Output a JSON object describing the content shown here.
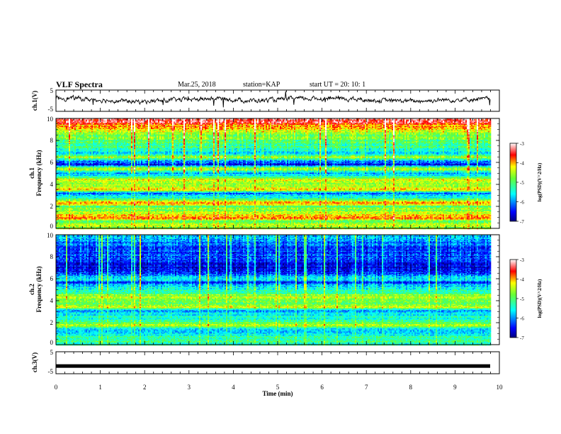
{
  "header": {
    "title": "VLF Spectra",
    "date": "Mar.25, 2018",
    "station": "station=KAP",
    "start": "start  UT  =   20: 10: 1"
  },
  "chart_data": [
    {
      "type": "line",
      "ylabel": "ch.1(V)",
      "ylim": [
        -5,
        5
      ],
      "yticks": [
        "5",
        "-5"
      ],
      "xlim": [
        0,
        10
      ],
      "series": [
        {
          "values_summary": [
            1.5,
            0.5,
            -0.5,
            0.3,
            1.0,
            0.0,
            0.8,
            1.2,
            0.2,
            -0.2,
            0.5,
            0.8
          ]
        }
      ]
    },
    {
      "type": "heatmap",
      "channel": "ch.1",
      "ylabel": "Frequency (kHz)",
      "ylim": [
        0,
        10
      ],
      "yticks": [
        "0",
        "2",
        "4",
        "6",
        "8",
        "10"
      ],
      "xlim": [
        0,
        9.8
      ],
      "colorbar": {
        "label": "log(PSD)(V^2/Hz)",
        "range": [
          -7,
          -3
        ],
        "ticks": [
          "-3",
          "-4",
          "-5",
          "-6",
          "-7"
        ]
      },
      "bands": [
        {
          "f": 10.0,
          "v": -3.2
        },
        {
          "f": 9.3,
          "v": -4.0
        },
        {
          "f": 8.5,
          "v": -4.7
        },
        {
          "f": 7.5,
          "v": -5.2
        },
        {
          "f": 6.8,
          "v": -5.6
        },
        {
          "f": 6.5,
          "v": -4.6
        },
        {
          "f": 6.0,
          "v": -6.3
        },
        {
          "f": 5.8,
          "v": -6.6
        },
        {
          "f": 5.4,
          "v": -4.3
        },
        {
          "f": 5.0,
          "v": -6.0
        },
        {
          "f": 4.6,
          "v": -4.9
        },
        {
          "f": 4.3,
          "v": -4.2
        },
        {
          "f": 4.0,
          "v": -4.6
        },
        {
          "f": 3.5,
          "v": -4.0
        },
        {
          "f": 3.2,
          "v": -6.3
        },
        {
          "f": 3.0,
          "v": -5.8
        },
        {
          "f": 2.6,
          "v": -4.9
        },
        {
          "f": 2.3,
          "v": -3.8
        },
        {
          "f": 2.0,
          "v": -5.0
        },
        {
          "f": 1.6,
          "v": -4.6
        },
        {
          "f": 1.2,
          "v": -4.3
        },
        {
          "f": 1.0,
          "v": -3.8
        },
        {
          "f": 0.6,
          "v": -5.0
        },
        {
          "f": 0.3,
          "v": -4.5
        },
        {
          "f": 0.0,
          "v": -4.6
        }
      ]
    },
    {
      "type": "heatmap",
      "channel": "ch.2",
      "ylabel": "Frequency (kHz)",
      "ylim": [
        0,
        10
      ],
      "yticks": [
        "0",
        "2",
        "4",
        "6",
        "8",
        "10"
      ],
      "xlim": [
        0,
        9.8
      ],
      "colorbar": {
        "label": "log(PSD)(V^2/Hz)",
        "range": [
          -7,
          -3
        ],
        "ticks": [
          "-3",
          "-4",
          "-5",
          "-6",
          "-7"
        ]
      },
      "bands": [
        {
          "f": 10.0,
          "v": -5.8
        },
        {
          "f": 9.0,
          "v": -6.2
        },
        {
          "f": 8.0,
          "v": -6.4
        },
        {
          "f": 7.0,
          "v": -6.6
        },
        {
          "f": 6.5,
          "v": -6.3
        },
        {
          "f": 6.0,
          "v": -5.6
        },
        {
          "f": 5.6,
          "v": -6.4
        },
        {
          "f": 5.2,
          "v": -5.5
        },
        {
          "f": 4.7,
          "v": -5.0
        },
        {
          "f": 4.2,
          "v": -4.5
        },
        {
          "f": 3.8,
          "v": -5.0
        },
        {
          "f": 3.4,
          "v": -4.3
        },
        {
          "f": 3.1,
          "v": -6.0
        },
        {
          "f": 2.6,
          "v": -5.6
        },
        {
          "f": 2.1,
          "v": -5.2
        },
        {
          "f": 1.8,
          "v": -4.6
        },
        {
          "f": 1.4,
          "v": -5.6
        },
        {
          "f": 1.0,
          "v": -5.8
        },
        {
          "f": 0.6,
          "v": -5.2
        },
        {
          "f": 0.3,
          "v": -4.9
        },
        {
          "f": 0.0,
          "v": -5.4
        }
      ]
    },
    {
      "type": "line",
      "ylabel": "ch.3(V)",
      "ylim": [
        -5,
        5
      ],
      "yticks": [
        "5",
        "-5"
      ],
      "xlim": [
        0,
        10
      ],
      "series": [
        {
          "values_summary": [
            -1.5
          ]
        }
      ]
    }
  ],
  "xaxis": {
    "label": "Time (min)",
    "ticks": [
      "0",
      "1",
      "2",
      "3",
      "4",
      "5",
      "6",
      "7",
      "8",
      "9",
      "10"
    ]
  }
}
